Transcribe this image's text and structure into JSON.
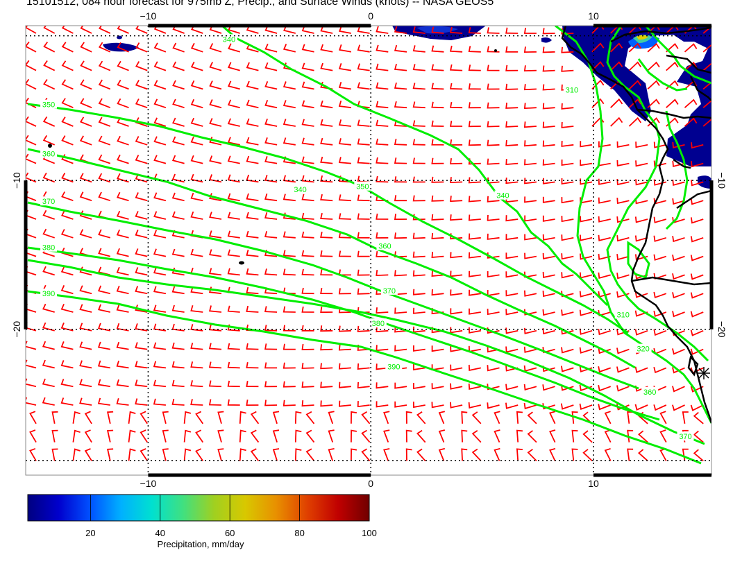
{
  "title": "15101512, 084 hour forecast for 975mb Z, Precip., and Surface Winds (knots) -- NASA GEOS5",
  "map": {
    "lon_range": [
      -15.5,
      15.3
    ],
    "lat_range": [
      -29.8,
      0.4
    ],
    "lon_ticks": [
      -10,
      0,
      10
    ],
    "lat_ticks": [
      -10,
      -20
    ],
    "lon_tick_labels": [
      "−10",
      "0",
      "10"
    ],
    "lat_tick_labels": [
      "−10",
      "−20"
    ],
    "contour_color": "#00ee00",
    "barb_color": "#ff0000",
    "coast_color": "#000000"
  },
  "contours": [
    {
      "label": "340",
      "label_lon": -3.2,
      "label_lat": -10.6
    },
    {
      "label": "350",
      "label_lon": -14.5,
      "label_lat": -4.9
    },
    {
      "label": "350",
      "label_lon": -0.4,
      "label_lat": -10.4
    },
    {
      "label": "360",
      "label_lon": -14.5,
      "label_lat": -8.2
    },
    {
      "label": "360",
      "label_lon": 0.6,
      "label_lat": -14.4
    },
    {
      "label": "370",
      "label_lon": -14.5,
      "label_lat": -11.4
    },
    {
      "label": "370",
      "label_lon": 0.8,
      "label_lat": -17.4
    },
    {
      "label": "380",
      "label_lon": -14.5,
      "label_lat": -14.5
    },
    {
      "label": "380",
      "label_lon": 0.3,
      "label_lat": -19.6
    },
    {
      "label": "390",
      "label_lon": -14.5,
      "label_lat": -17.6
    },
    {
      "label": "390",
      "label_lon": 1.0,
      "label_lat": -22.5
    },
    {
      "label": "340",
      "label_lon": 5.9,
      "label_lat": -11.0
    },
    {
      "label": "310",
      "label_lon": 9.0,
      "label_lat": -3.9
    },
    {
      "label": "310",
      "label_lon": 11.3,
      "label_lat": -19.0
    },
    {
      "label": "320",
      "label_lon": 12.2,
      "label_lat": -21.3
    },
    {
      "label": "360",
      "label_lon": 12.5,
      "label_lat": -24.2
    },
    {
      "label": "370",
      "label_lon": 14.1,
      "label_lat": -27.2
    },
    {
      "label": "340",
      "label_lon": -6.4,
      "label_lat": -0.5
    }
  ],
  "colorbar": {
    "label": "Precipitation, mm/day",
    "ticks": [
      "20",
      "40",
      "60",
      "80",
      "100"
    ],
    "min": 2,
    "max": 100,
    "colors": [
      "#000080",
      "#0000cd",
      "#0050ff",
      "#00b0ff",
      "#00e0d0",
      "#40e080",
      "#a0d020",
      "#d8c800",
      "#e89000",
      "#e04000",
      "#c00000",
      "#700000"
    ]
  }
}
